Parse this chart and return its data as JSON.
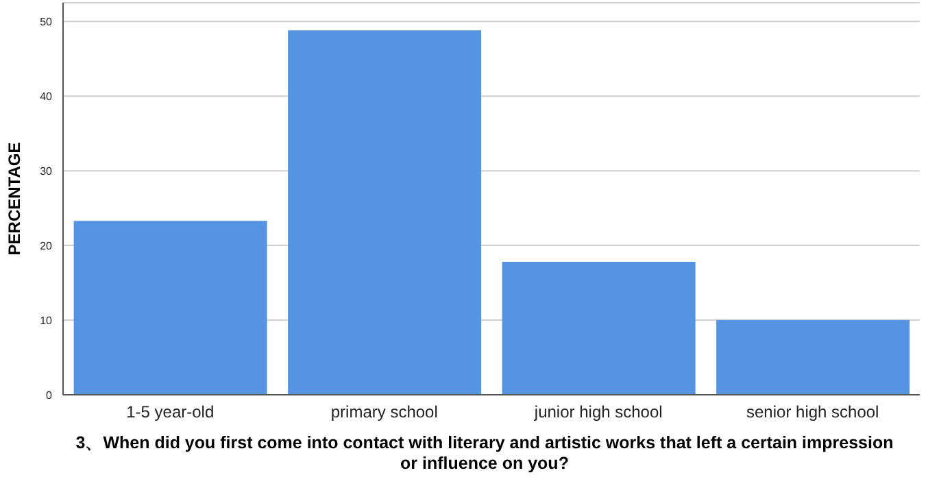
{
  "chart_data": {
    "type": "bar",
    "xlabel": "3、When did you first come into contact with literary and artistic works that left a certain impression or influence on you?",
    "ylabel": "PERCENTAGE",
    "categories": [
      "1-5 year-old",
      "primary school",
      "junior high school",
      "senior high school"
    ],
    "values": [
      23.3,
      48.8,
      17.8,
      10.0
    ],
    "color": "#5494e3",
    "ylim": [
      0,
      52.5
    ],
    "yticks": [
      0,
      10,
      20,
      30,
      40,
      50
    ],
    "grid": "y"
  }
}
